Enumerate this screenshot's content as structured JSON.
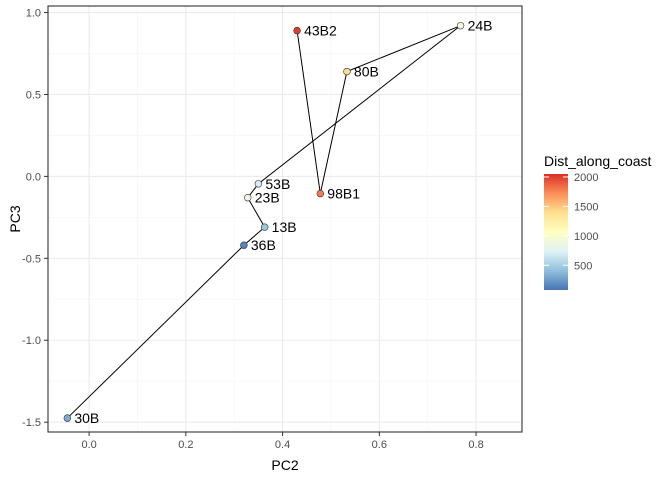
{
  "chart_data": {
    "type": "scatter",
    "xlabel": "PC2",
    "ylabel": "PC3",
    "xlim": [
      -0.085,
      0.895
    ],
    "ylim": [
      -1.56,
      1.04
    ],
    "x_ticks": [
      0.0,
      0.2,
      0.4,
      0.6,
      0.8
    ],
    "x_tick_labels": [
      "0.0",
      "0.2",
      "0.4",
      "0.6",
      "0.8"
    ],
    "y_ticks": [
      1.0,
      0.5,
      0.0,
      -0.5,
      -1.0,
      -1.5
    ],
    "y_tick_labels": [
      "1.0",
      "0.5",
      "0.0",
      "-0.5",
      "-1.0",
      "-1.5"
    ],
    "grid": true,
    "colors": {
      "point_outline": "#333333",
      "path_line": "#000000",
      "grid_major": "#ebebeb",
      "grid_minor": "#f5f5f5",
      "panel_border": "#333333"
    },
    "points": [
      {
        "label": "43B2",
        "x": 0.43,
        "y": 0.89,
        "dist": 2000
      },
      {
        "label": "98B1",
        "x": 0.478,
        "y": -0.105,
        "dist": 1780
      },
      {
        "label": "80B",
        "x": 0.533,
        "y": 0.64,
        "dist": 1400
      },
      {
        "label": "24B",
        "x": 0.768,
        "y": 0.92,
        "dist": 900
      },
      {
        "label": "53B",
        "x": 0.35,
        "y": -0.045,
        "dist": 700
      },
      {
        "label": "23B",
        "x": 0.328,
        "y": -0.13,
        "dist": 850
      },
      {
        "label": "13B",
        "x": 0.363,
        "y": -0.31,
        "dist": 450
      },
      {
        "label": "36B",
        "x": 0.32,
        "y": -0.42,
        "dist": 150
      },
      {
        "label": "30B",
        "x": -0.045,
        "y": -1.475,
        "dist": 320
      }
    ],
    "path_order": [
      "43B2",
      "98B1",
      "80B",
      "24B",
      "53B",
      "23B",
      "13B",
      "36B",
      "30B"
    ],
    "legend": {
      "title": "Dist_along_coast",
      "placement": "right",
      "range": [
        80,
        2050
      ],
      "ticks": [
        500,
        1000,
        1500,
        2000
      ],
      "tick_labels": [
        "500",
        "1000",
        "1500",
        "2000"
      ],
      "color_stops": [
        "#4575b4",
        "#91bfdb",
        "#e0f3f8",
        "#ffffbf",
        "#fee090",
        "#fc8d59",
        "#d73027"
      ]
    }
  }
}
